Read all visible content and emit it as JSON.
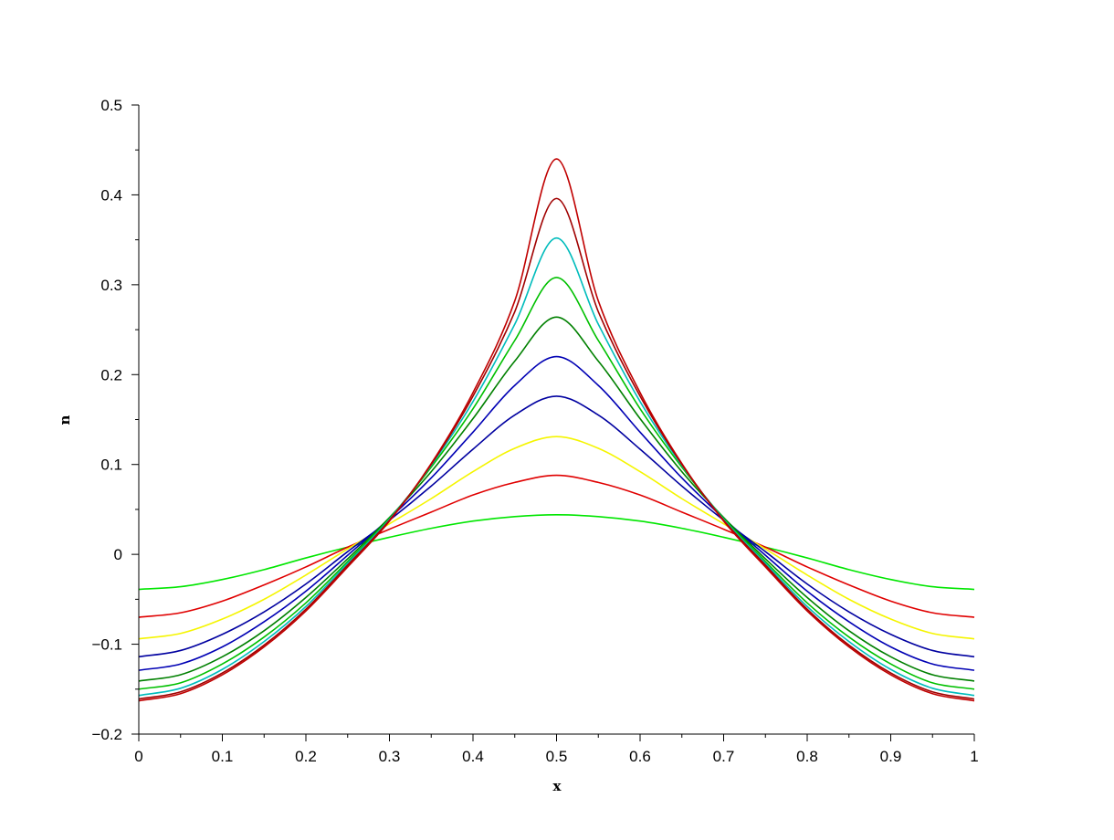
{
  "chart_data": {
    "type": "line",
    "title": "",
    "xlabel": "x",
    "ylabel": "n",
    "xlim": [
      0,
      1
    ],
    "ylim": [
      -0.2,
      0.5
    ],
    "xticks": [
      0,
      0.1,
      0.2,
      0.3,
      0.4,
      0.5,
      0.6,
      0.7,
      0.8,
      0.9,
      1
    ],
    "xtick_labels": [
      "0",
      "0.1",
      "0.2",
      "0.3",
      "0.4",
      "0.5",
      "0.6",
      "0.7",
      "0.8",
      "0.9",
      "1"
    ],
    "yticks": [
      -0.2,
      -0.1,
      0,
      0.1,
      0.2,
      0.3,
      0.4,
      0.5
    ],
    "ytick_labels": [
      "−0.2",
      "−0.1",
      "0",
      "0.1",
      "0.2",
      "0.3",
      "0.4",
      "0.5"
    ],
    "grid": false,
    "legend": "none",
    "x": [
      0,
      0.05,
      0.1,
      0.15,
      0.2,
      0.25,
      0.3,
      0.35,
      0.4,
      0.45,
      0.5,
      0.55,
      0.6,
      0.65,
      0.7,
      0.75,
      0.8,
      0.85,
      0.9,
      0.95,
      1
    ],
    "series": [
      {
        "color": "#00e600",
        "values": [
          -0.039,
          -0.036,
          -0.028,
          -0.017,
          -0.004,
          0.008,
          0.019,
          0.029,
          0.037,
          0.042,
          0.044,
          0.042,
          0.037,
          0.029,
          0.019,
          0.008,
          -0.004,
          -0.017,
          -0.028,
          -0.036,
          -0.039
        ]
      },
      {
        "color": "#e00000",
        "values": [
          -0.07,
          -0.065,
          -0.052,
          -0.034,
          -0.014,
          0.008,
          0.028,
          0.047,
          0.066,
          0.08,
          0.088,
          0.08,
          0.066,
          0.047,
          0.028,
          0.008,
          -0.014,
          -0.034,
          -0.052,
          -0.065,
          -0.07
        ]
      },
      {
        "color": "#f5f500",
        "values": [
          -0.094,
          -0.088,
          -0.072,
          -0.05,
          -0.023,
          0.006,
          0.034,
          0.062,
          0.092,
          0.118,
          0.131,
          0.118,
          0.092,
          0.062,
          0.034,
          0.006,
          -0.023,
          -0.05,
          -0.072,
          -0.088,
          -0.094
        ]
      },
      {
        "color": "#0000a0",
        "values": [
          -0.114,
          -0.107,
          -0.089,
          -0.064,
          -0.033,
          0.003,
          0.038,
          0.076,
          0.117,
          0.155,
          0.176,
          0.155,
          0.117,
          0.076,
          0.038,
          0.003,
          -0.033,
          -0.064,
          -0.089,
          -0.107,
          -0.114
        ]
      },
      {
        "color": "#0000b4",
        "values": [
          -0.129,
          -0.122,
          -0.103,
          -0.075,
          -0.041,
          -0.001,
          0.04,
          0.085,
          0.136,
          0.188,
          0.22,
          0.188,
          0.136,
          0.085,
          0.04,
          -0.001,
          -0.041,
          -0.075,
          -0.103,
          -0.122,
          -0.129
        ]
      },
      {
        "color": "#008000",
        "values": [
          -0.141,
          -0.134,
          -0.114,
          -0.085,
          -0.048,
          -0.005,
          0.041,
          0.092,
          0.151,
          0.215,
          0.264,
          0.215,
          0.151,
          0.092,
          0.041,
          -0.005,
          -0.048,
          -0.085,
          -0.114,
          -0.134,
          -0.141
        ]
      },
      {
        "color": "#00c000",
        "values": [
          -0.15,
          -0.143,
          -0.122,
          -0.092,
          -0.054,
          -0.008,
          0.04,
          0.097,
          0.162,
          0.238,
          0.308,
          0.238,
          0.162,
          0.097,
          0.04,
          -0.008,
          -0.054,
          -0.092,
          -0.122,
          -0.143,
          -0.15
        ]
      },
      {
        "color": "#00bcbc",
        "values": [
          -0.157,
          -0.149,
          -0.128,
          -0.097,
          -0.058,
          -0.01,
          0.039,
          0.099,
          0.17,
          0.256,
          0.352,
          0.256,
          0.17,
          0.099,
          0.039,
          -0.01,
          -0.058,
          -0.097,
          -0.128,
          -0.149,
          -0.157
        ]
      },
      {
        "color": "#a00000",
        "values": [
          -0.161,
          -0.153,
          -0.132,
          -0.101,
          -0.061,
          -0.012,
          0.038,
          0.1,
          0.176,
          0.27,
          0.396,
          0.27,
          0.176,
          0.1,
          0.038,
          -0.012,
          -0.061,
          -0.101,
          -0.132,
          -0.153,
          -0.161
        ]
      },
      {
        "color": "#c00000",
        "values": [
          -0.163,
          -0.155,
          -0.134,
          -0.103,
          -0.063,
          -0.014,
          0.037,
          0.101,
          0.18,
          0.282,
          0.44,
          0.282,
          0.18,
          0.101,
          0.037,
          -0.014,
          -0.063,
          -0.103,
          -0.134,
          -0.155,
          -0.163
        ]
      }
    ]
  }
}
